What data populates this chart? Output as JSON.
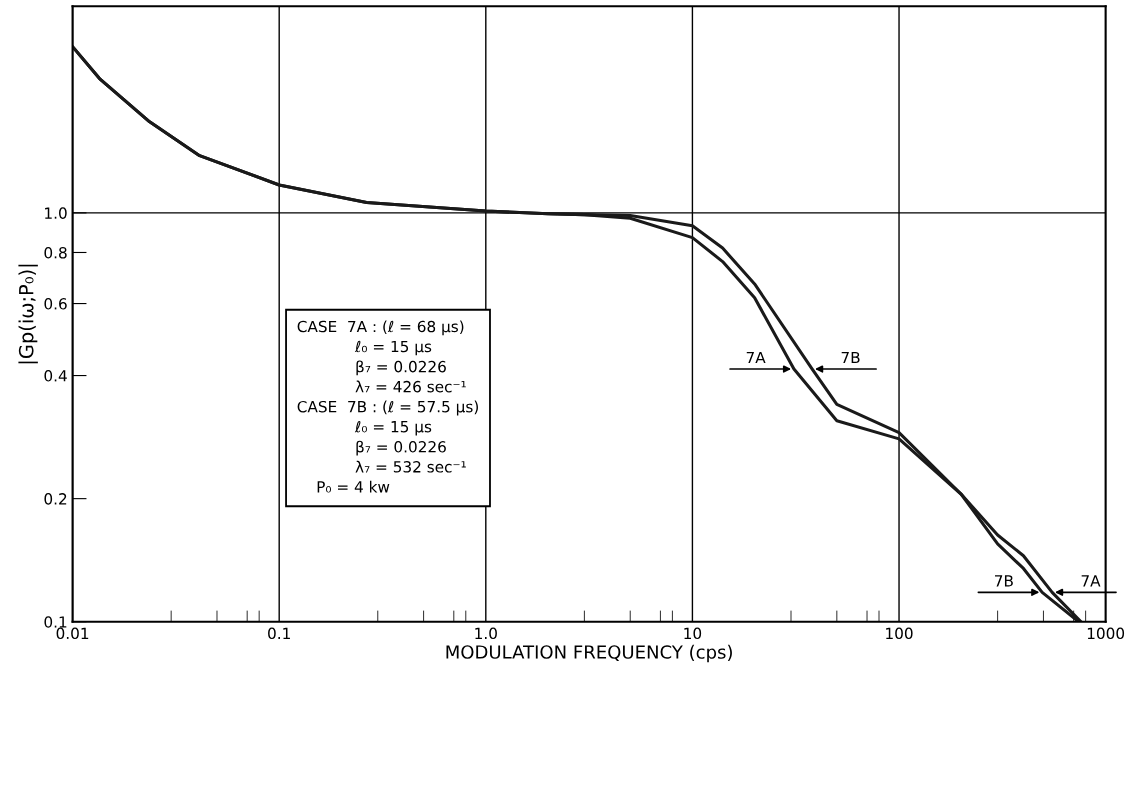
{
  "chart_data": {
    "type": "line",
    "xlabel": "MODULATION FREQUENCY (cps)",
    "ylabel": "|Gp(iω;P₀)|",
    "log": "xy",
    "xlim": [
      0.01,
      1000
    ],
    "ylim": [
      0.1,
      3.2
    ],
    "xticks": [
      {
        "value": 0.01,
        "label": "0.01"
      },
      {
        "value": 0.03,
        "label": null
      },
      {
        "value": 0.05,
        "label": null
      },
      {
        "value": 0.07,
        "label": null
      },
      {
        "value": 0.08,
        "label": null
      },
      {
        "value": 0.1,
        "label": "0.1"
      },
      {
        "value": 0.3,
        "label": null
      },
      {
        "value": 0.5,
        "label": null
      },
      {
        "value": 0.7,
        "label": null
      },
      {
        "value": 0.8,
        "label": null
      },
      {
        "value": 1,
        "label": "1.0"
      },
      {
        "value": 3,
        "label": null
      },
      {
        "value": 5,
        "label": null
      },
      {
        "value": 7,
        "label": null
      },
      {
        "value": 8,
        "label": null
      },
      {
        "value": 10,
        "label": "10"
      },
      {
        "value": 30,
        "label": null
      },
      {
        "value": 50,
        "label": null
      },
      {
        "value": 70,
        "label": null
      },
      {
        "value": 80,
        "label": null
      },
      {
        "value": 100,
        "label": "100"
      },
      {
        "value": 300,
        "label": null
      },
      {
        "value": 500,
        "label": null
      },
      {
        "value": 700,
        "label": null
      },
      {
        "value": 800,
        "label": null
      },
      {
        "value": 1000,
        "label": "1000"
      }
    ],
    "yticks": [
      {
        "value": 0.1,
        "label": "0.1"
      },
      {
        "value": 0.2,
        "label": "0.2"
      },
      {
        "value": 0.4,
        "label": "0.4"
      },
      {
        "value": 0.6,
        "label": "0.6"
      },
      {
        "value": 0.8,
        "label": "0.8"
      },
      {
        "value": 1.0,
        "label": "1.0"
      }
    ],
    "grid": "x",
    "ref_lines": [
      {
        "axis": "y",
        "value": 1.0,
        "color": "#000000"
      }
    ],
    "series": [
      {
        "color": "#1a1a1a",
        "x": [
          0.01,
          0.0135,
          0.0236,
          0.0412,
          0.1,
          0.265,
          1,
          2,
          3,
          5,
          10,
          14,
          20,
          31,
          50,
          100,
          200,
          300,
          400,
          551,
          760
        ],
        "values": [
          2.55,
          2.13,
          1.67,
          1.38,
          1.17,
          1.06,
          1.01,
          0.995,
          0.99,
          0.97,
          0.87,
          0.76,
          0.62,
          0.415,
          0.31,
          0.28,
          0.205,
          0.163,
          0.145,
          0.118,
          0.1
        ]
      },
      {
        "color": "#1a1a1a",
        "x": [
          0.01,
          0.0135,
          0.0236,
          0.0412,
          0.1,
          0.265,
          1,
          2,
          3,
          5,
          10,
          14,
          20,
          38,
          50,
          100,
          200,
          300,
          400,
          493,
          740
        ],
        "values": [
          2.55,
          2.13,
          1.67,
          1.38,
          1.17,
          1.06,
          1.01,
          0.995,
          0.99,
          0.985,
          0.93,
          0.82,
          0.67,
          0.415,
          0.34,
          0.29,
          0.205,
          0.155,
          0.135,
          0.118,
          0.1
        ]
      }
    ],
    "annotations": [
      {
        "text": "7A",
        "x": 31,
        "y": 0.415
      },
      {
        "text": "7B",
        "x": 38,
        "y": 0.415
      },
      {
        "text": "7B",
        "x": 493,
        "y": 0.118
      },
      {
        "text": "7A",
        "x": 551,
        "y": 0.118
      },
      "CASE  7A : (ℓ = 68 μs)\n            ℓ₀ = 15 μs\n            β₇ = 0.0226\n            λ₇ = 426 sec⁻¹\nCASE  7B : (ℓ = 57.5 μs)\n            ℓ₀ = 15 μs\n            β₇ = 0.0226\n            λ₇ = 532 sec⁻¹\n    P₀ = 4 kw"
    ]
  }
}
